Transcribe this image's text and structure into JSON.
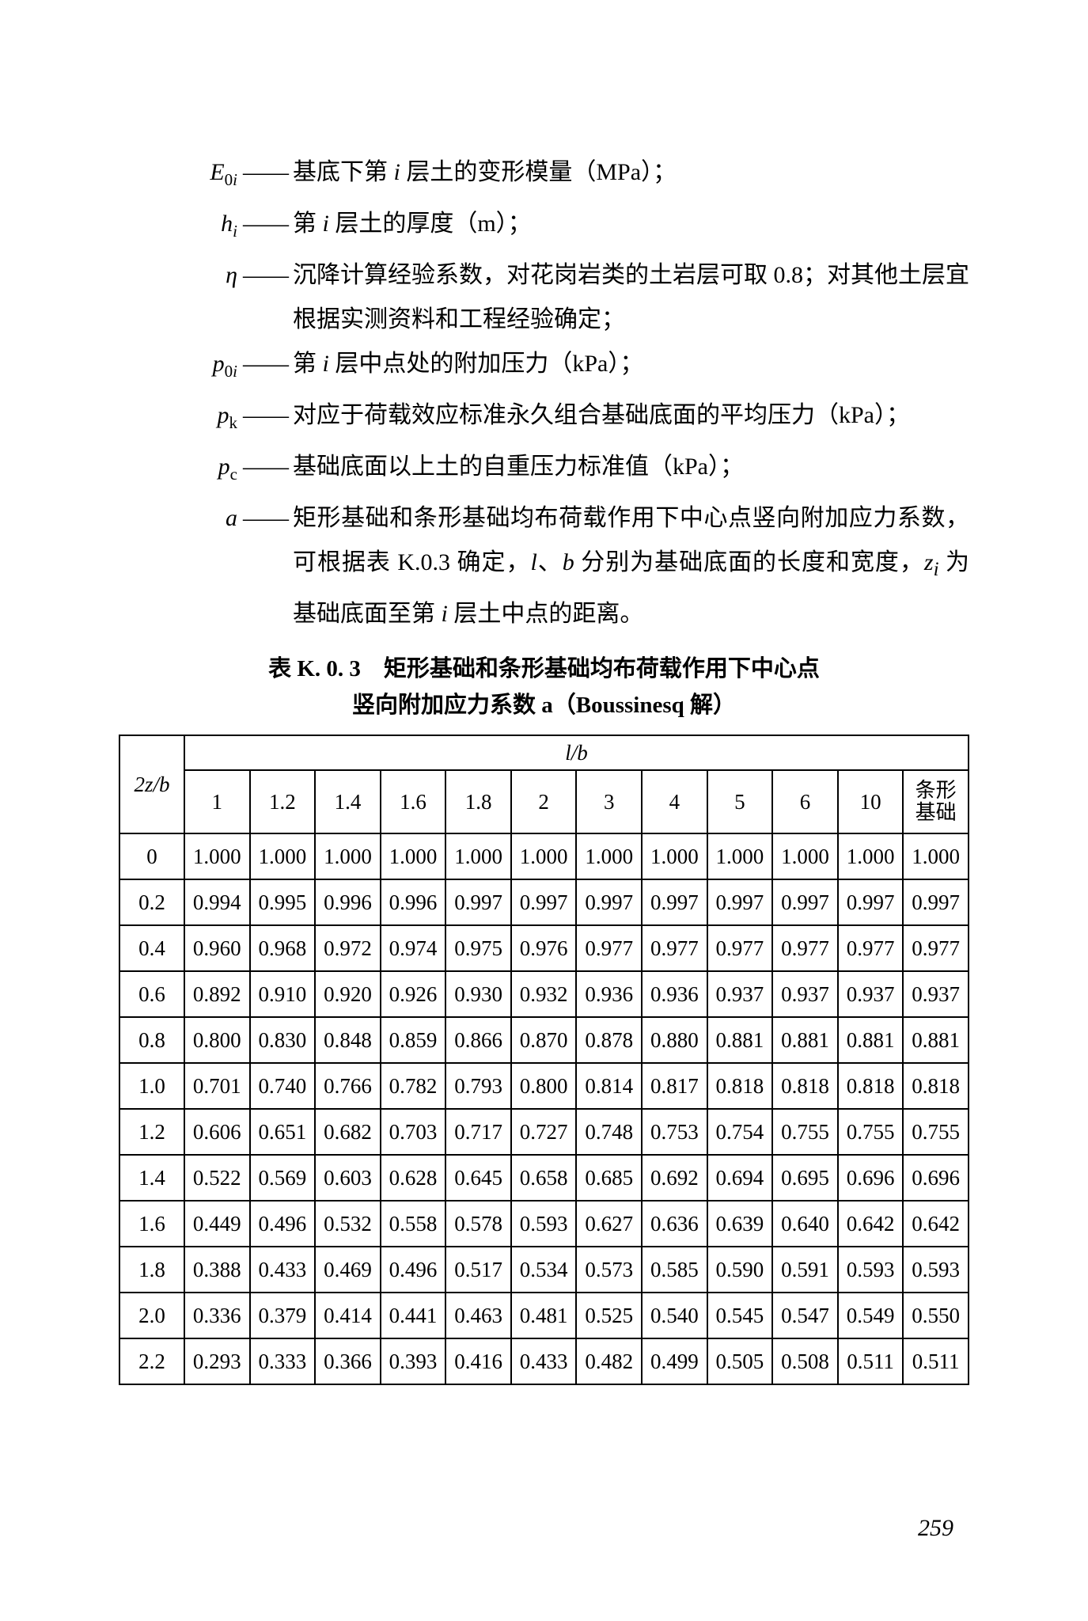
{
  "definitions": [
    {
      "symbol_html": "E<sub>0<i>i</i></sub>",
      "text_html": "基底下第 <span class='inline-i'>i</span> 层土的变形模量（MPa）；"
    },
    {
      "symbol_html": "h<sub><i>i</i></sub>",
      "text_html": "第 <span class='inline-i'>i</span> 层土的厚度（m）；"
    },
    {
      "symbol_html": "η",
      "text_html": "沉降计算经验系数，对花岗岩类的土岩层可取 0.8；对其他土层宜根据实测资料和工程经验确定；"
    },
    {
      "symbol_html": "p<sub>0<i>i</i></sub>",
      "text_html": "第 <span class='inline-i'>i</span> 层中点处的附加压力（kPa）；"
    },
    {
      "symbol_html": "p<sub>k</sub>",
      "text_html": "对应于荷载效应标准永久组合基础底面的平均压力（kPa）；"
    },
    {
      "symbol_html": "p<sub>c</sub>",
      "text_html": "基础底面以上土的自重压力标准值（kPa）；"
    },
    {
      "symbol_html": "a",
      "text_html": "矩形基础和条形基础均布荷载作用下中心点竖向附加应力系数，可根据表 K.0.3 确定，<span class='inline-i'>l</span>、<span class='inline-i'>b</span> 分别为基础底面的长度和宽度，<span class='inline-i'>z<sub>i</sub></span> 为基础底面至第 <span class='inline-i'>i</span> 层土中点的距离。"
    }
  ],
  "dash": "——",
  "table_title_line1": "表 K. 0. 3　矩形基础和条形基础均布荷载作用下中心点",
  "table_title_line2": "竖向附加应力系数 a（Boussinesq 解）",
  "table": {
    "corner": "2z/b",
    "super_header": "l/b",
    "columns": [
      "1",
      "1.2",
      "1.4",
      "1.6",
      "1.8",
      "2",
      "3",
      "4",
      "5",
      "6",
      "10",
      "条形\n基础"
    ],
    "rows": [
      {
        "z": "0",
        "v": [
          "1.000",
          "1.000",
          "1.000",
          "1.000",
          "1.000",
          "1.000",
          "1.000",
          "1.000",
          "1.000",
          "1.000",
          "1.000",
          "1.000"
        ]
      },
      {
        "z": "0.2",
        "v": [
          "0.994",
          "0.995",
          "0.996",
          "0.996",
          "0.997",
          "0.997",
          "0.997",
          "0.997",
          "0.997",
          "0.997",
          "0.997",
          "0.997"
        ]
      },
      {
        "z": "0.4",
        "v": [
          "0.960",
          "0.968",
          "0.972",
          "0.974",
          "0.975",
          "0.976",
          "0.977",
          "0.977",
          "0.977",
          "0.977",
          "0.977",
          "0.977"
        ]
      },
      {
        "z": "0.6",
        "v": [
          "0.892",
          "0.910",
          "0.920",
          "0.926",
          "0.930",
          "0.932",
          "0.936",
          "0.936",
          "0.937",
          "0.937",
          "0.937",
          "0.937"
        ]
      },
      {
        "z": "0.8",
        "v": [
          "0.800",
          "0.830",
          "0.848",
          "0.859",
          "0.866",
          "0.870",
          "0.878",
          "0.880",
          "0.881",
          "0.881",
          "0.881",
          "0.881"
        ]
      },
      {
        "z": "1.0",
        "v": [
          "0.701",
          "0.740",
          "0.766",
          "0.782",
          "0.793",
          "0.800",
          "0.814",
          "0.817",
          "0.818",
          "0.818",
          "0.818",
          "0.818"
        ]
      },
      {
        "z": "1.2",
        "v": [
          "0.606",
          "0.651",
          "0.682",
          "0.703",
          "0.717",
          "0.727",
          "0.748",
          "0.753",
          "0.754",
          "0.755",
          "0.755",
          "0.755"
        ]
      },
      {
        "z": "1.4",
        "v": [
          "0.522",
          "0.569",
          "0.603",
          "0.628",
          "0.645",
          "0.658",
          "0.685",
          "0.692",
          "0.694",
          "0.695",
          "0.696",
          "0.696"
        ]
      },
      {
        "z": "1.6",
        "v": [
          "0.449",
          "0.496",
          "0.532",
          "0.558",
          "0.578",
          "0.593",
          "0.627",
          "0.636",
          "0.639",
          "0.640",
          "0.642",
          "0.642"
        ]
      },
      {
        "z": "1.8",
        "v": [
          "0.388",
          "0.433",
          "0.469",
          "0.496",
          "0.517",
          "0.534",
          "0.573",
          "0.585",
          "0.590",
          "0.591",
          "0.593",
          "0.593"
        ]
      },
      {
        "z": "2.0",
        "v": [
          "0.336",
          "0.379",
          "0.414",
          "0.441",
          "0.463",
          "0.481",
          "0.525",
          "0.540",
          "0.545",
          "0.547",
          "0.549",
          "0.550"
        ]
      },
      {
        "z": "2.2",
        "v": [
          "0.293",
          "0.333",
          "0.366",
          "0.393",
          "0.416",
          "0.433",
          "0.482",
          "0.499",
          "0.505",
          "0.508",
          "0.511",
          "0.511"
        ]
      }
    ]
  },
  "page_number": "259"
}
